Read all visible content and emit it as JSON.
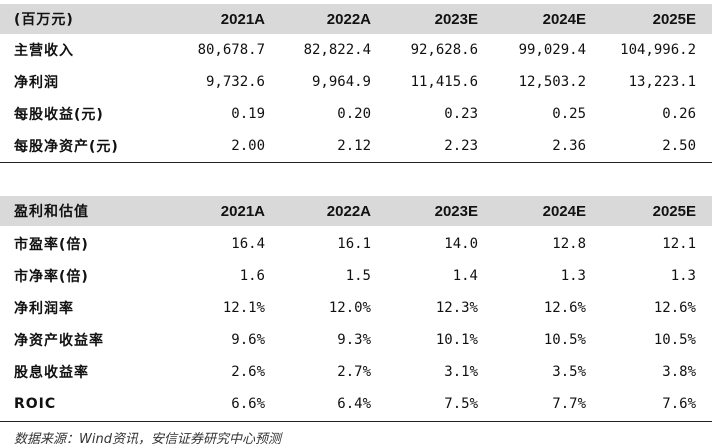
{
  "table1": {
    "header": [
      "(百万元)",
      "2021A",
      "2022A",
      "2023E",
      "2024E",
      "2025E"
    ],
    "rows": [
      [
        "主营收入",
        "80,678.7",
        "82,822.4",
        "92,628.6",
        "99,029.4",
        "104,996.2"
      ],
      [
        "净利润",
        "9,732.6",
        "9,964.9",
        "11,415.6",
        "12,503.2",
        "13,223.1"
      ],
      [
        "每股收益(元)",
        "0.19",
        "0.20",
        "0.23",
        "0.25",
        "0.26"
      ],
      [
        "每股净资产(元)",
        "2.00",
        "2.12",
        "2.23",
        "2.36",
        "2.50"
      ]
    ]
  },
  "table2": {
    "header": [
      "盈利和估值",
      "2021A",
      "2022A",
      "2023E",
      "2024E",
      "2025E"
    ],
    "rows": [
      [
        "市盈率(倍)",
        "16.4",
        "16.1",
        "14.0",
        "12.8",
        "12.1"
      ],
      [
        "市净率(倍)",
        "1.6",
        "1.5",
        "1.4",
        "1.3",
        "1.3"
      ],
      [
        "净利润率",
        "12.1%",
        "12.0%",
        "12.3%",
        "12.6%",
        "12.6%"
      ],
      [
        "净资产收益率",
        "9.6%",
        "9.3%",
        "10.1%",
        "10.5%",
        "10.5%"
      ],
      [
        "股息收益率",
        "2.6%",
        "2.7%",
        "3.1%",
        "3.5%",
        "3.8%"
      ],
      [
        "ROIC",
        "6.6%",
        "6.4%",
        "7.5%",
        "7.7%",
        "7.6%"
      ]
    ]
  },
  "footnote": "数据来源：Wind资讯，安信证券研究中心预测"
}
